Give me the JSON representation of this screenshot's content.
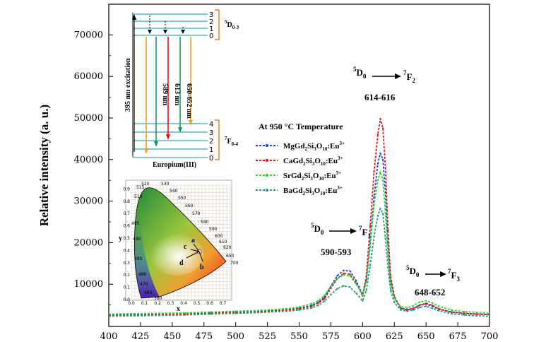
{
  "chart_data": {
    "type": "line",
    "title": "",
    "xlabel": "",
    "ylabel": "Relative intensity (a. u.)",
    "xlim": [
      400,
      700
    ],
    "ylim": [
      0,
      75000
    ],
    "xticks": [
      400,
      425,
      450,
      475,
      500,
      525,
      550,
      575,
      600,
      625,
      650,
      675,
      700
    ],
    "xtick_labels": [
      "400",
      "425",
      "450",
      "475",
      "500",
      "525",
      "550",
      "575",
      "600",
      "625",
      "650",
      "675",
      "700"
    ],
    "yticks": [
      10000,
      20000,
      30000,
      40000,
      50000,
      60000,
      70000
    ],
    "ytick_labels": [
      "10000",
      "20000",
      "30000",
      "40000",
      "50000",
      "60000",
      "70000"
    ],
    "legend": {
      "title": "At 950 °C Temperature",
      "placement": "right"
    },
    "series": [
      {
        "name": "MgGd2Si3O10:Eu3+",
        "label_parts": [
          "MgGd",
          "2",
          "Si",
          "3",
          "O",
          "10",
          ":Eu",
          "3+"
        ],
        "color": "#1f3fd6",
        "x": [
          400,
          420,
          440,
          460,
          480,
          500,
          520,
          540,
          550,
          560,
          565,
          570,
          575,
          580,
          585,
          590,
          595,
          600,
          603,
          606,
          609,
          612,
          614,
          616,
          618,
          620,
          622,
          625,
          630,
          635,
          640,
          645,
          650,
          655,
          660,
          670,
          680,
          690,
          700
        ],
        "y": [
          2600,
          2700,
          2800,
          2900,
          3100,
          3300,
          3500,
          3900,
          4200,
          4900,
          5600,
          6900,
          9500,
          12000,
          13300,
          13200,
          10800,
          7500,
          11000,
          20000,
          31000,
          39000,
          41500,
          40000,
          32000,
          20000,
          11000,
          6800,
          4200,
          3800,
          4100,
          4900,
          5200,
          4700,
          4000,
          3300,
          3000,
          2800,
          2700
        ]
      },
      {
        "name": "CaGd2Si3O10:Eu3+",
        "label_parts": [
          "CaGd",
          "2",
          "Si",
          "3",
          "O",
          "10",
          ":Eu",
          "3+"
        ],
        "color": "#e81010",
        "x": [
          400,
          420,
          440,
          460,
          480,
          500,
          520,
          540,
          550,
          560,
          565,
          570,
          575,
          580,
          585,
          590,
          595,
          600,
          603,
          606,
          609,
          612,
          614,
          616,
          618,
          620,
          622,
          625,
          630,
          635,
          640,
          645,
          650,
          655,
          660,
          670,
          680,
          690,
          700
        ],
        "y": [
          2500,
          2600,
          2700,
          2800,
          3000,
          3200,
          3400,
          3800,
          4100,
          4700,
          5400,
          6500,
          9000,
          11300,
          12600,
          12400,
          10200,
          7200,
          12000,
          24000,
          37000,
          46000,
          49800,
          47500,
          38000,
          23000,
          12000,
          7000,
          4300,
          3900,
          4200,
          5000,
          5400,
          4900,
          4100,
          3300,
          3000,
          2800,
          2700
        ]
      },
      {
        "name": "SrGd2Si3O10:Eu3+",
        "label_parts": [
          "SrGd",
          "2",
          "Si",
          "3",
          "O",
          "10",
          ":Eu",
          "3+"
        ],
        "color": "#22dd22",
        "x": [
          400,
          420,
          440,
          460,
          480,
          500,
          520,
          540,
          550,
          560,
          565,
          570,
          575,
          580,
          585,
          590,
          595,
          600,
          603,
          606,
          609,
          612,
          614,
          616,
          618,
          620,
          622,
          625,
          630,
          635,
          640,
          645,
          650,
          655,
          660,
          670,
          680,
          690,
          700
        ],
        "y": [
          2800,
          2900,
          3000,
          3100,
          3300,
          3500,
          3700,
          4100,
          4500,
          5300,
          6000,
          7300,
          9500,
          11300,
          12300,
          12000,
          10000,
          7400,
          10500,
          19000,
          29000,
          35000,
          37000,
          35000,
          27000,
          17000,
          10000,
          6600,
          4600,
          4300,
          4800,
          5700,
          6000,
          5500,
          4700,
          3800,
          3400,
          3200,
          3000
        ]
      },
      {
        "name": "BaGd2Si3O10:Eu3+",
        "label_parts": [
          "BaGd",
          "2",
          "Si",
          "3",
          "O",
          "10",
          ":Eu",
          "3+"
        ],
        "color": "#1a9a8a",
        "x": [
          400,
          420,
          440,
          460,
          480,
          500,
          520,
          540,
          550,
          560,
          565,
          570,
          575,
          580,
          585,
          590,
          595,
          600,
          603,
          606,
          609,
          612,
          614,
          616,
          618,
          620,
          622,
          625,
          630,
          635,
          640,
          645,
          650,
          655,
          660,
          670,
          680,
          690,
          700
        ],
        "y": [
          2300,
          2400,
          2500,
          2600,
          2800,
          3000,
          3200,
          3500,
          3800,
          4300,
          4900,
          5900,
          7500,
          8900,
          9600,
          9300,
          7800,
          6000,
          8500,
          14500,
          21500,
          26500,
          28200,
          27000,
          21000,
          14000,
          8500,
          5600,
          3800,
          3500,
          3800,
          4400,
          4700,
          4200,
          3600,
          2900,
          2600,
          2400,
          2300
        ]
      }
    ],
    "annotations": {
      "peak1": {
        "upper": "5",
        "left": "D",
        "sub": "0",
        "upper2": "7",
        "right": "F",
        "sub2": "1",
        "range": "590-593"
      },
      "peak2": {
        "upper": "5",
        "left": "D",
        "sub": "0",
        "upper2": "7",
        "right": "F",
        "sub2": "2",
        "range": "614-616"
      },
      "peak3": {
        "upper": "5",
        "left": "D",
        "sub": "0",
        "upper2": "7",
        "right": "F",
        "sub2": "3",
        "range": "648-652"
      }
    }
  },
  "energy_diagram": {
    "upper_levels": [
      "3",
      "2",
      "1",
      "0"
    ],
    "upper_label_sup": "5",
    "upper_label_main": "D",
    "upper_label_sub": "0-3",
    "lower_levels": [
      "4",
      "3",
      "2",
      "1",
      "0"
    ],
    "lower_label_sup": "7",
    "lower_label_main": "F",
    "lower_label_sub": "0-4",
    "excitation": "395 nm excitation",
    "emissions": [
      "589 nm",
      "613 nm",
      "650-652 nm"
    ],
    "caption": "Europium(III)"
  },
  "cie_inset": {
    "x_label": "x",
    "y_label": "y",
    "x_ticks": [
      "0.0",
      "0.1",
      "0.2",
      "0.3",
      "0.4",
      "0.5",
      "0.6",
      "0.7"
    ],
    "y_ticks": [
      "0.0",
      "0.1",
      "0.2",
      "0.3",
      "0.4",
      "0.5",
      "0.6",
      "0.7",
      "0.8",
      "0.9"
    ],
    "wavelengths": [
      "520",
      "515",
      "510",
      "530",
      "540",
      "550",
      "560",
      "570",
      "580",
      "590",
      "600",
      "610",
      "620",
      "650",
      "700",
      "495",
      "490",
      "485",
      "480",
      "470",
      "460",
      "380"
    ],
    "points": [
      "a",
      "b",
      "c",
      "d"
    ]
  }
}
